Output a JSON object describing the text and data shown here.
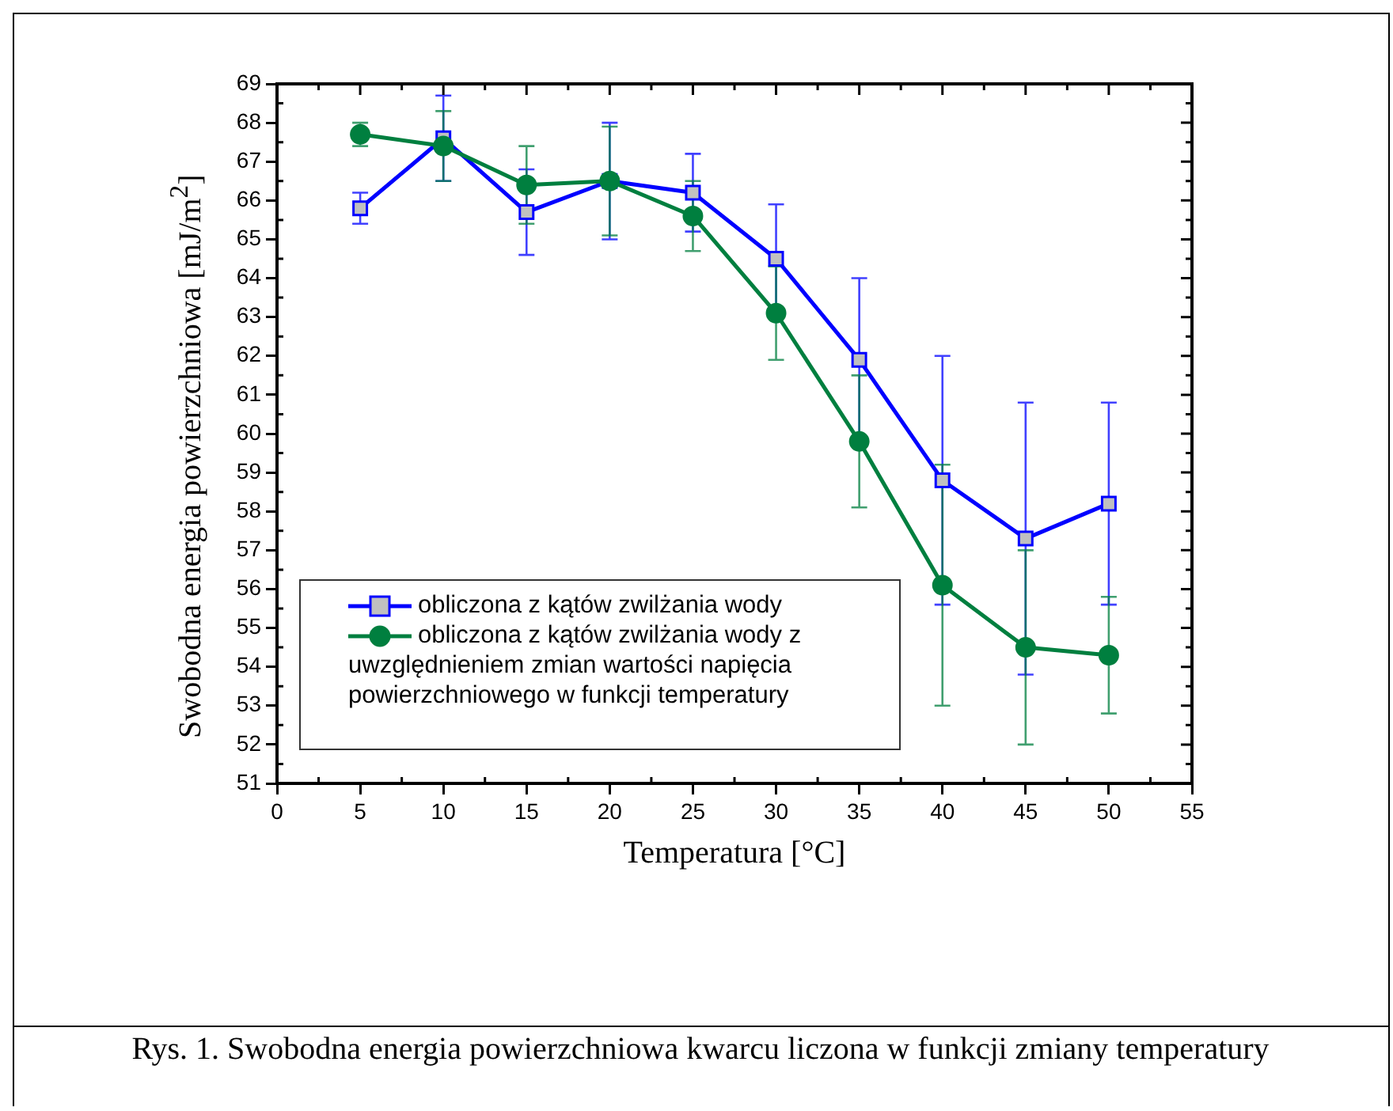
{
  "chart_data": {
    "type": "line",
    "xlabel": "Temperatura [°C]",
    "ylabel": "Swobodna energia powierzchniowa [mJ/m$^{2}$]",
    "x": [
      5,
      10,
      15,
      20,
      25,
      30,
      35,
      40,
      45,
      50
    ],
    "series": [
      {
        "name": "obliczona z kątów zwilżania wody",
        "color": "#0000ff",
        "marker": "square",
        "values": [
          65.8,
          67.6,
          65.7,
          66.5,
          66.2,
          64.5,
          61.9,
          58.8,
          57.3,
          58.2
        ],
        "errors": [
          0.4,
          1.1,
          1.1,
          1.5,
          1.0,
          1.4,
          2.1,
          3.2,
          3.5,
          2.6
        ]
      },
      {
        "name": "obliczona z kątów zwilżania wody z uwzględnieniem zmian wartości napięcia powierzchniowego w funkcji temperatury",
        "color": "#007f3f",
        "marker": "circle",
        "values": [
          67.7,
          67.4,
          66.4,
          66.5,
          65.6,
          63.1,
          59.8,
          56.1,
          54.5,
          54.3
        ],
        "errors": [
          0.3,
          0.9,
          1.0,
          1.4,
          0.9,
          1.2,
          1.7,
          3.1,
          2.5,
          1.5
        ]
      }
    ],
    "xlim": [
      0,
      55
    ],
    "xticks": [
      0,
      5,
      10,
      15,
      20,
      25,
      30,
      35,
      40,
      45,
      50,
      55
    ],
    "ylim": [
      51,
      69
    ],
    "yticks": [
      51,
      52,
      53,
      54,
      55,
      56,
      57,
      58,
      59,
      60,
      61,
      62,
      63,
      64,
      65,
      66,
      67,
      68,
      69
    ],
    "grid": false,
    "legend": "bottom left",
    "line_style": "solid",
    "annotations": [
      "Rys. 1. Swobodna energia powierzchniowa kwarcu liczona w funkcji zmiany temperatury"
    ]
  }
}
